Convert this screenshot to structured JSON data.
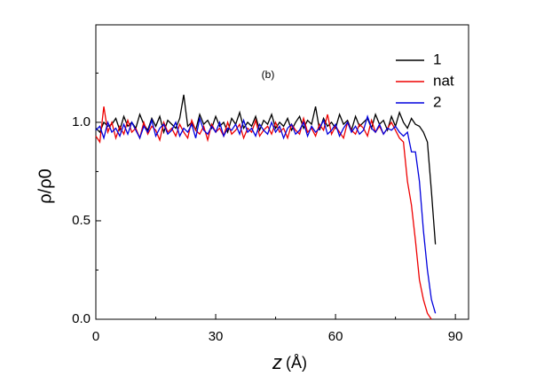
{
  "chart_data": {
    "type": "line",
    "annotation": "(b)",
    "ylabel": "ρ/ρ0",
    "xlabel": "z",
    "xunit": "(Å)",
    "xlim": [
      0,
      93.3
    ],
    "ylim": [
      0,
      1.495
    ],
    "xticks": [
      0,
      30,
      60,
      90
    ],
    "xminor": [
      15,
      45,
      75
    ],
    "yticks": [
      {
        "value": 0,
        "label": "0.0"
      },
      {
        "value": 0.5,
        "label": "0.5"
      },
      {
        "value": 1,
        "label": "1.0"
      }
    ],
    "yminor": [
      0.25,
      0.75,
      1.25
    ],
    "legend": "top-right",
    "x": [
      0,
      1,
      2,
      3,
      4,
      5,
      6,
      7,
      8,
      9,
      10,
      11,
      12,
      13,
      14,
      15,
      16,
      17,
      18,
      19,
      20,
      21,
      22,
      23,
      24,
      25,
      26,
      27,
      28,
      29,
      30,
      31,
      32,
      33,
      34,
      35,
      36,
      37,
      38,
      39,
      40,
      41,
      42,
      43,
      44,
      45,
      46,
      47,
      48,
      49,
      50,
      51,
      52,
      53,
      54,
      55,
      56,
      57,
      58,
      59,
      60,
      61,
      62,
      63,
      64,
      65,
      66,
      67,
      68,
      69,
      70,
      71,
      72,
      73,
      74,
      75,
      76,
      77,
      78,
      79,
      80,
      81,
      82,
      83,
      84,
      85
    ],
    "series": [
      {
        "name": "1",
        "color": "#000000",
        "values": [
          0.97,
          0.95,
          1.0,
          0.98,
          0.99,
          1.02,
          0.96,
          1.03,
          0.98,
          1.0,
          0.97,
          1.04,
          0.99,
          0.96,
          1.02,
          0.98,
          1.03,
          0.95,
          1.01,
          0.99,
          0.97,
          1.02,
          1.14,
          0.98,
          1.0,
          0.96,
          1.04,
          0.99,
          1.01,
          0.97,
          1.03,
          0.98,
          1.0,
          0.95,
          1.02,
          0.99,
          1.05,
          0.97,
          1.0,
          0.98,
          1.03,
          0.96,
          1.01,
          0.99,
          1.04,
          0.97,
          1.0,
          0.98,
          1.02,
          0.96,
          1.0,
          1.03,
          0.97,
          1.01,
          0.99,
          1.08,
          0.96,
          1.02,
          0.98,
          1.0,
          0.97,
          1.04,
          0.99,
          1.01,
          0.96,
          1.03,
          0.98,
          1.0,
          1.02,
          0.97,
          1.04,
          0.99,
          1.01,
          0.96,
          1.03,
          0.98,
          1.05,
          1.0,
          0.97,
          1.02,
          0.99,
          0.98,
          0.95,
          0.9,
          0.65,
          0.38
        ]
      },
      {
        "name": "nat",
        "color": "#ee0000",
        "values": [
          0.93,
          0.9,
          1.08,
          0.95,
          1.0,
          0.92,
          0.98,
          0.94,
          1.01,
          0.95,
          0.97,
          0.92,
          1.0,
          0.94,
          0.98,
          0.96,
          0.91,
          1.0,
          0.95,
          0.97,
          0.93,
          0.99,
          0.95,
          0.92,
          1.01,
          0.96,
          0.94,
          0.98,
          0.91,
          0.99,
          0.95,
          0.97,
          0.93,
          1.0,
          0.94,
          0.96,
          0.99,
          0.92,
          0.97,
          0.95,
          1.01,
          0.93,
          0.96,
          0.98,
          0.94,
          1.0,
          0.95,
          0.97,
          0.92,
          0.99,
          0.96,
          0.94,
          1.02,
          0.95,
          0.97,
          0.93,
          0.99,
          0.96,
          1.04,
          0.94,
          0.98,
          0.95,
          0.92,
          1.0,
          0.96,
          0.94,
          0.99,
          0.97,
          0.93,
          1.01,
          0.95,
          0.98,
          0.94,
          0.97,
          1.0,
          0.96,
          0.92,
          0.9,
          0.7,
          0.58,
          0.4,
          0.2,
          0.1,
          0.03,
          0.0,
          null
        ]
      },
      {
        "name": "2",
        "color": "#0000dd",
        "values": [
          0.96,
          0.98,
          0.92,
          1.0,
          0.95,
          0.97,
          0.93,
          0.99,
          0.94,
          1.0,
          0.96,
          0.92,
          0.98,
          0.95,
          1.01,
          0.93,
          0.97,
          0.99,
          0.94,
          0.96,
          1.0,
          0.93,
          0.97,
          0.95,
          0.99,
          0.92,
          1.02,
          0.96,
          0.94,
          0.98,
          0.95,
          1.0,
          0.93,
          0.97,
          0.96,
          0.99,
          0.94,
          1.01,
          0.95,
          0.97,
          0.93,
          0.99,
          0.96,
          0.94,
          1.0,
          0.95,
          0.98,
          0.92,
          0.97,
          0.99,
          0.94,
          0.96,
          1.0,
          0.93,
          0.98,
          0.95,
          0.97,
          1.01,
          0.94,
          0.96,
          0.99,
          0.93,
          0.97,
          1.0,
          0.95,
          0.98,
          0.94,
          0.96,
          1.03,
          0.97,
          0.95,
          0.99,
          0.94,
          0.97,
          0.96,
          0.98,
          0.95,
          0.93,
          0.95,
          0.85,
          0.85,
          0.7,
          0.45,
          0.25,
          0.1,
          0.03
        ]
      }
    ]
  }
}
